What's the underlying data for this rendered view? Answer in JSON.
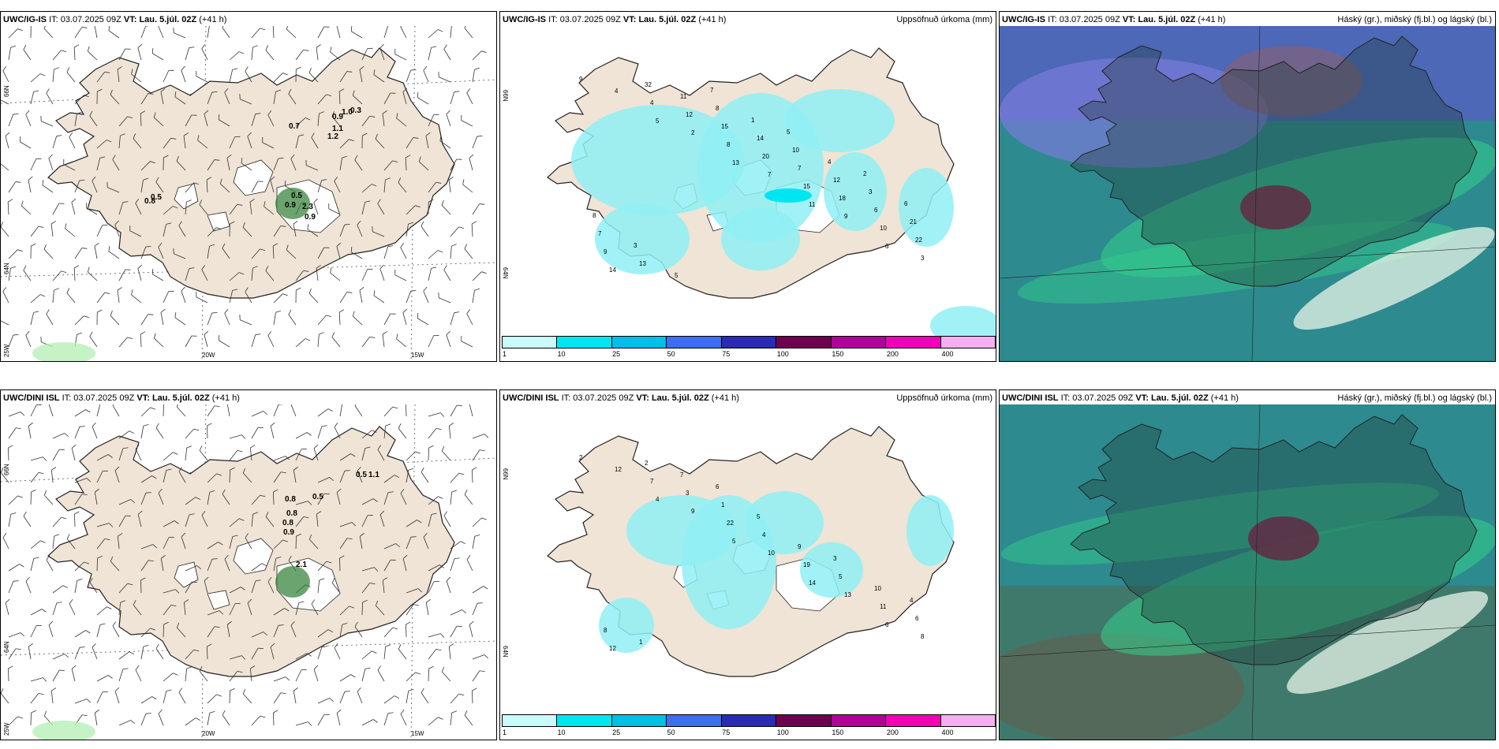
{
  "rows": [
    {
      "model": "UWC/IG-IS",
      "it_label": "IT:",
      "it_value": "03.07.2025 09Z",
      "vt_label": "VT:",
      "vt_value": "Lau. 5.júl. 02Z",
      "lead": "(+41 h)",
      "wind_values": [
        "0.7",
        "0.9",
        "1.0",
        "0.3",
        "1.1",
        "1.2",
        "0.8",
        "0.5",
        "0.5",
        "0.9",
        "2.3",
        "0.9"
      ],
      "precip_values": [
        "9",
        "5",
        "13",
        "11",
        "6",
        "4",
        "2",
        "7",
        "9",
        "3",
        "4",
        "8",
        "15",
        "10",
        "14",
        "12",
        "20",
        "18",
        "22",
        "32",
        "15",
        "7",
        "6",
        "9",
        "11",
        "14",
        "12",
        "21",
        "13",
        "8",
        "10",
        "3",
        "7",
        "5",
        "1",
        "4",
        "6",
        "3",
        "7",
        "5",
        "2",
        "8"
      ]
    },
    {
      "model": "UWC/DINI ISL",
      "it_label": "IT:",
      "it_value": "03.07.2025 09Z",
      "vt_label": "VT:",
      "vt_value": "Lau. 5.júl. 02Z",
      "lead": "(+41 h)",
      "wind_values": [
        "0.8",
        "0.5",
        "0.8",
        "0.8",
        "0.9",
        "0.5",
        "1.1",
        "2.1"
      ],
      "precip_values": [
        "2",
        "4",
        "5",
        "14",
        "6",
        "12",
        "9",
        "10",
        "13",
        "8",
        "7",
        "22",
        "19",
        "11",
        "12",
        "3",
        "4",
        "5",
        "6",
        "2",
        "1",
        "9",
        "10",
        "8",
        "7",
        "5",
        "3",
        "4",
        "1",
        "6"
      ]
    }
  ],
  "precip_title": "Uppsöfnuð úrkoma (mm)",
  "cloud_title": "Háský (gr.), miðský (fj.bl.) og lágský (bl.)",
  "lat_labels": [
    "66N",
    "64N"
  ],
  "lon_labels": [
    "20W",
    "15W",
    "25W"
  ],
  "colorbar": {
    "ticks": [
      "1",
      "10",
      "25",
      "50",
      "75",
      "100",
      "150",
      "200",
      "400"
    ],
    "colors": [
      "#c9fbfb",
      "#00e6f0",
      "#00bfe8",
      "#3d6ef0",
      "#2a2ab4",
      "#6e0050",
      "#b4009a",
      "#f200b8",
      "#f2b0f2"
    ]
  },
  "colors": {
    "land": "#efe4d5",
    "precip": "#8ff0f5",
    "cloud_ocean": "#2d8a8f",
    "cloud_green": "#35d08c"
  }
}
